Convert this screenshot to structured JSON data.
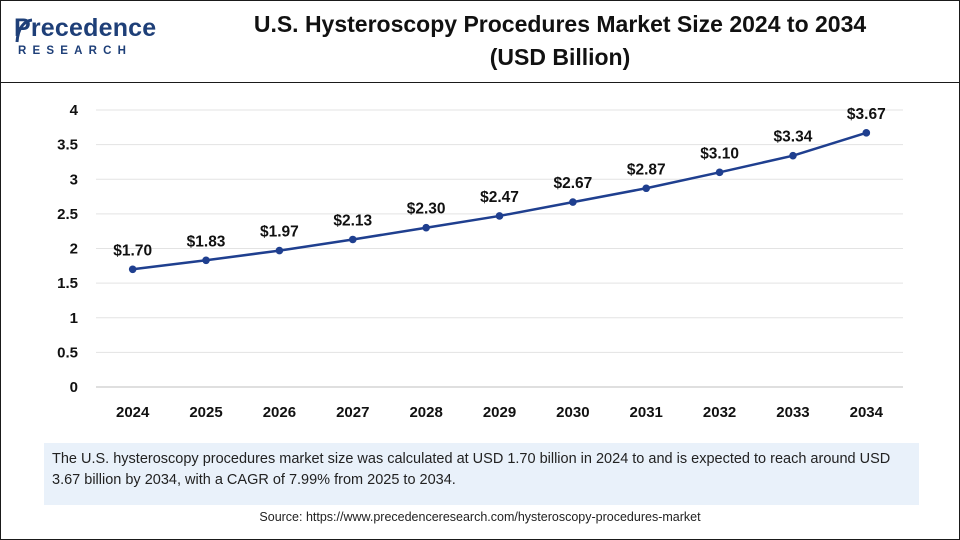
{
  "brand": {
    "logo_main": "Precedence",
    "logo_sub": "RESEARCH"
  },
  "title_line1": "U.S. Hysteroscopy Procedures Market Size 2024 to 2034",
  "title_line2": "(USD Billion)",
  "colors": {
    "line": "#1f3f8f",
    "marker": "#1f3f8f",
    "brand": "#1e3f78",
    "note_bg": "#e9f1fa"
  },
  "chart_data": {
    "type": "line",
    "title": "U.S. Hysteroscopy Procedures Market Size 2024 to 2034 (USD Billion)",
    "categories": [
      "2024",
      "2025",
      "2026",
      "2027",
      "2028",
      "2029",
      "2030",
      "2031",
      "2032",
      "2033",
      "2034"
    ],
    "series": [
      {
        "values": [
          1.7,
          1.83,
          1.97,
          2.13,
          2.3,
          2.47,
          2.67,
          2.87,
          3.1,
          3.34,
          3.67
        ]
      }
    ],
    "data_labels": [
      "$1.70",
      "$1.83",
      "$1.97",
      "$2.13",
      "$2.30",
      "$2.47",
      "$2.67",
      "$2.87",
      "$3.10",
      "$3.34",
      "$3.67"
    ],
    "y_ticks": [
      "0",
      "0.5",
      "1",
      "1.5",
      "2",
      "2.5",
      "3",
      "3.5",
      "4"
    ],
    "ylim": [
      0,
      4
    ],
    "grid": true,
    "legend": "none"
  },
  "note": "The U.S. hysteroscopy procedures market size was calculated at USD 1.70 billion in 2024 to and is expected to reach around USD 3.67 billion by 2034, with a CAGR of 7.99% from 2025 to 2034.",
  "source": "Source: https://www.precedenceresearch.com/hysteroscopy-procedures-market"
}
